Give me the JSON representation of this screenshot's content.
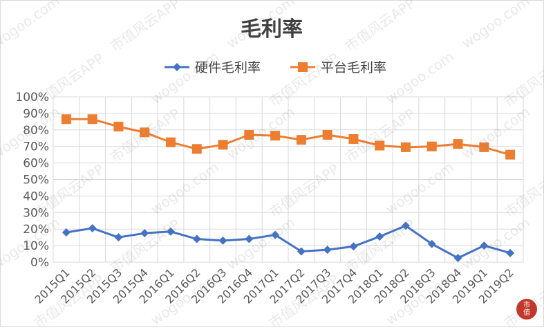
{
  "chart_data": {
    "type": "line",
    "title": "毛利率",
    "categories": [
      "2015Q1",
      "2015Q2",
      "2015Q3",
      "2015Q4",
      "2016Q1",
      "2016Q2",
      "2016Q3",
      "2016Q4",
      "2017Q1",
      "2017Q2",
      "2017Q3",
      "2017Q4",
      "2018Q1",
      "2018Q2",
      "2018Q3",
      "2018Q4",
      "2019Q1",
      "2019Q2"
    ],
    "series": [
      {
        "name": "硬件毛利率",
        "color": "#4472c4",
        "marker": "diamond",
        "values": [
          18,
          20.5,
          15,
          17.5,
          18.5,
          14,
          13,
          14,
          16.5,
          6.5,
          7.5,
          9.5,
          15.5,
          22,
          11,
          2.5,
          10,
          5.5
        ]
      },
      {
        "name": "平台毛利率",
        "color": "#ed7d31",
        "marker": "square",
        "values": [
          86.5,
          86.5,
          82,
          78.5,
          72.5,
          68.5,
          71,
          77,
          76.5,
          74,
          77,
          74.5,
          70.5,
          69.5,
          70,
          71.5,
          69.5,
          65
        ]
      }
    ],
    "ylim": [
      0,
      100
    ],
    "yticks": [
      "0%",
      "10%",
      "20%",
      "30%",
      "40%",
      "50%",
      "60%",
      "70%",
      "80%",
      "90%",
      "100%"
    ],
    "grid": true,
    "legend_position": "top"
  },
  "watermark": {
    "text_a": "wogoo.com",
    "text_b": "市值风云APP"
  },
  "badge": {
    "line1": "市",
    "line2": "值"
  }
}
